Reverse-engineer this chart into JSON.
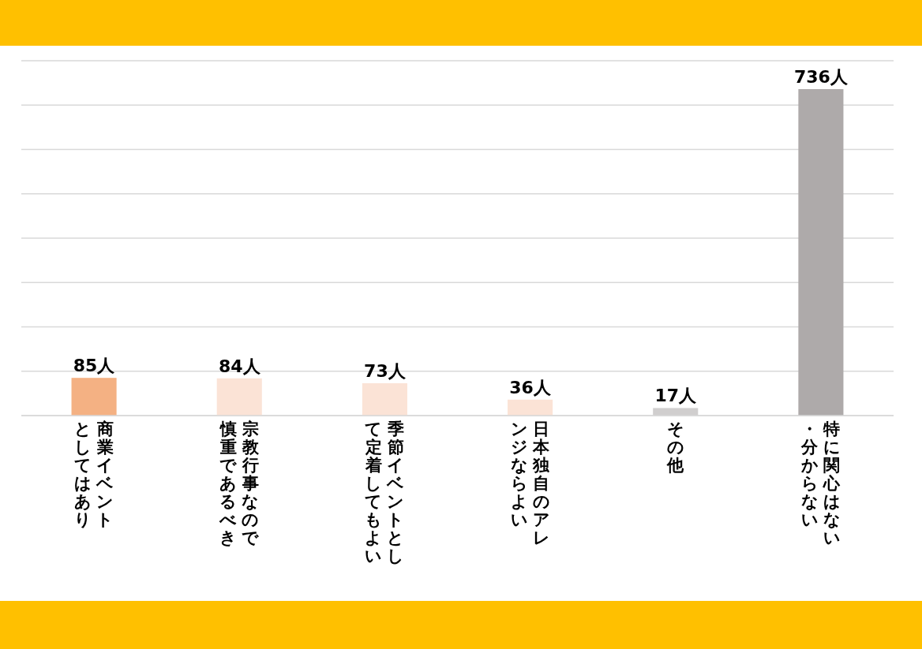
{
  "chart_data": {
    "type": "bar",
    "categories": [
      "商業イベントとしてはあり",
      "宗教行事なので慎重であるべき",
      "季節イベントとして定着してもよい",
      "日本独自のアレンジならよい",
      "その他",
      "特に関心はない・分からない"
    ],
    "values": [
      85,
      84,
      73,
      36,
      17,
      736
    ],
    "colors": [
      "#f4b183",
      "#fbe3d6",
      "#fbe3d6",
      "#fbe3d6",
      "#d0cece",
      "#aeaaaa"
    ],
    "value_labels": [
      "85人",
      "84人",
      "73人",
      "36人",
      "17人",
      "736人"
    ],
    "ylim": [
      0,
      800
    ],
    "yticks": [
      {
        "value": 0,
        "label": null
      },
      {
        "value": 100,
        "label": null
      },
      {
        "value": 200,
        "label": null
      },
      {
        "value": 300,
        "label": null
      },
      {
        "value": 400,
        "label": null
      },
      {
        "value": 500,
        "label": null
      },
      {
        "value": 600,
        "label": null
      },
      {
        "value": 700,
        "label": null
      },
      {
        "value": 800,
        "label": null
      }
    ],
    "grid": "y",
    "tick_labels": "x"
  }
}
